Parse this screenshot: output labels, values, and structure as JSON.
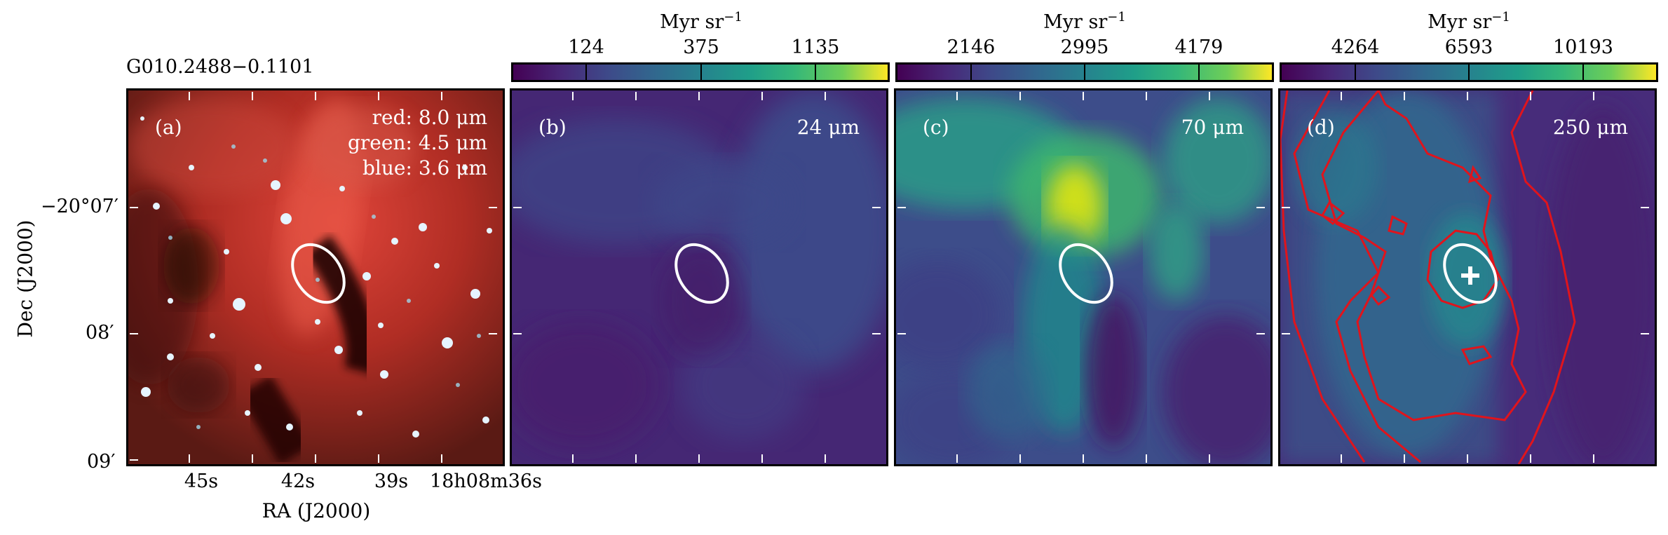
{
  "source_name": "G010.2488−0.1101",
  "colorbar_unit": "Myr sr",
  "colorbar_unit_exp": "−1",
  "panels": [
    {
      "label": "(a)",
      "band_lines": [
        "red: 8.0 μm",
        "green: 4.5 μm",
        "blue: 3.6 μm"
      ]
    },
    {
      "label": "(b)",
      "band": "24 μm",
      "colorbar_ticks": [
        "124",
        "375",
        "1135"
      ]
    },
    {
      "label": "(c)",
      "band": "70 μm",
      "colorbar_ticks": [
        "2146",
        "2995",
        "4179"
      ]
    },
    {
      "label": "(d)",
      "band": "250 μm",
      "colorbar_ticks": [
        "4264",
        "6593",
        "10193"
      ]
    }
  ],
  "axes": {
    "ylabel": "Dec (J2000)",
    "xlabel": "RA (J2000)",
    "yticks": [
      "−20°07′",
      "08′",
      "09′"
    ],
    "xticks": [
      "45s",
      "42s",
      "39s",
      "18h08m36s"
    ]
  },
  "colors": {
    "viridis_low": "#440154",
    "viridis_high": "#fde725",
    "contour": "#e0141c",
    "ellipse": "#ffffff"
  }
}
